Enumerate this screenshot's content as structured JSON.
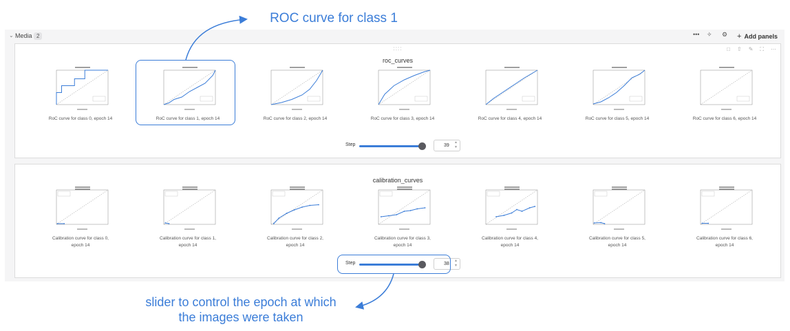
{
  "section": {
    "title": "Media",
    "count": "2",
    "add_panels_label": "Add panels"
  },
  "header_icons": [
    "more-icon",
    "sparkle-icon",
    "gear-icon",
    "plus-icon"
  ],
  "panel_roc": {
    "title": "roc_curves",
    "captions": [
      "RoC curve for class 0, epoch 14",
      "RoC curve for class 1, epoch 14",
      "RoC curve for class 2, epoch 14",
      "RoC curve for class 3, epoch 14",
      "RoC curve for class 4, epoch 14",
      "RoC curve for class 5, epoch 14",
      "RoC curve for class 6, epoch 14"
    ],
    "step_label": "Step",
    "step_value": "39",
    "slider_fraction": 0.9
  },
  "panel_cal": {
    "title": "calibration_curves",
    "captions": [
      [
        "Calibration curve for class 0,",
        "epoch 14"
      ],
      [
        "Calibration curve for class 1,",
        "epoch 14"
      ],
      [
        "Calibration curve for class 2,",
        "epoch 14"
      ],
      [
        "Calibration curve for class 3,",
        "epoch 14"
      ],
      [
        "Calibration curve for class 4,",
        "epoch 14"
      ],
      [
        "Calibration curve for class 5,",
        "epoch 14"
      ],
      [
        "Calibration curve for class 6,",
        "epoch 14"
      ]
    ],
    "step_label": "Step",
    "step_value": "38",
    "slider_fraction": 0.9
  },
  "annotations": {
    "top": "ROC curve for class 1",
    "bottom_line1": "slider to control the epoch at which",
    "bottom_line2": "the images were taken"
  },
  "colors": {
    "accent": "#3b7dd8",
    "panel_border": "#dcdcdc",
    "section_bg": "#f5f5f6"
  }
}
